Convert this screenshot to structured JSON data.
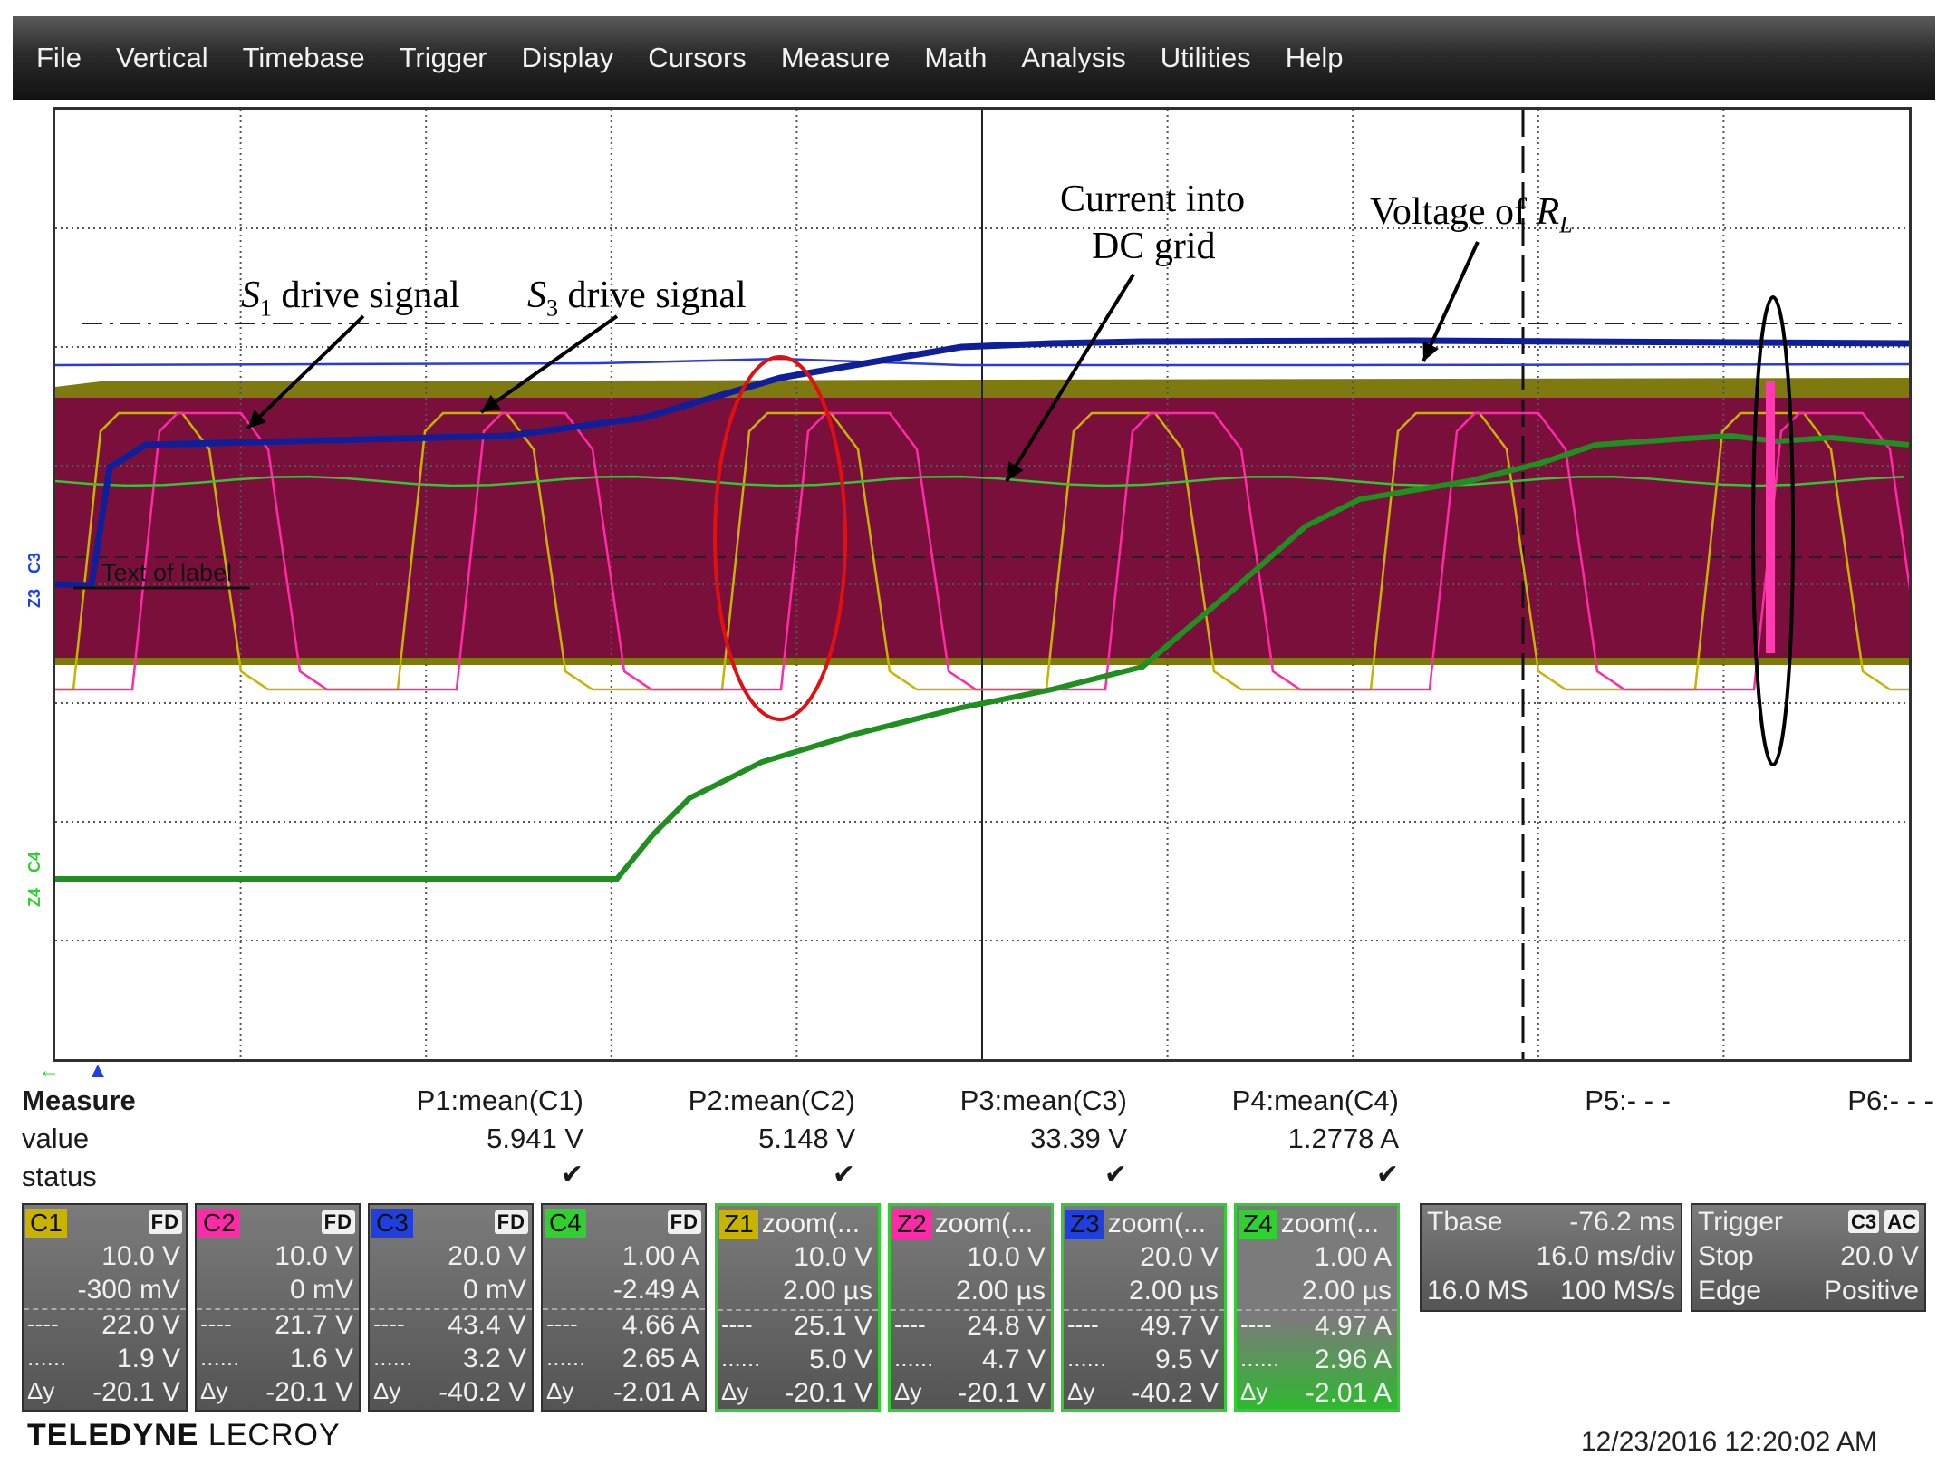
{
  "menu": [
    "File",
    "Vertical",
    "Timebase",
    "Trigger",
    "Display",
    "Cursors",
    "Measure",
    "Math",
    "Analysis",
    "Utilities",
    "Help"
  ],
  "annotations": {
    "s1": "drive signal",
    "s1_sym": "S",
    "s1_sub": "1",
    "s3": "drive signal",
    "s3_sym": "S",
    "s3_sub": "3",
    "current_line1": "Current into",
    "current_line2": "DC grid",
    "voltage": "Voltage of ",
    "voltage_sym": "R",
    "voltage_sub": "L"
  },
  "label_text": "Text of label",
  "channel_markers": {
    "c3": "C3",
    "z3": "Z3",
    "c4": "C4",
    "z4": "Z4"
  },
  "measure": {
    "title": "Measure",
    "row_value": "value",
    "row_status": "status",
    "params": [
      {
        "name": "P1:mean(C1)",
        "value": "5.941 V",
        "status": "✔"
      },
      {
        "name": "P2:mean(C2)",
        "value": "5.148 V",
        "status": "✔"
      },
      {
        "name": "P3:mean(C3)",
        "value": "33.39 V",
        "status": "✔"
      },
      {
        "name": "P4:mean(C4)",
        "value": "1.2778 A",
        "status": "✔"
      },
      {
        "name": "P5:- - -",
        "value": "",
        "status": ""
      },
      {
        "name": "P6:- - -",
        "value": "",
        "status": ""
      }
    ]
  },
  "channels": [
    {
      "tag": "C1",
      "title": "",
      "tagcolor": "#c8b400",
      "fd": "FD",
      "r1": "10.0 V",
      "r2": "-300 mV",
      "r3l": "----",
      "r3": "22.0 V",
      "r4l": "......",
      "r4": "1.9 V",
      "r5l": "Δy",
      "r5": "-20.1 V"
    },
    {
      "tag": "C2",
      "title": "",
      "tagcolor": "#ff2aa8",
      "fd": "FD",
      "r1": "10.0 V",
      "r2": "0 mV",
      "r3l": "----",
      "r3": "21.7 V",
      "r4l": "......",
      "r4": "1.6 V",
      "r5l": "Δy",
      "r5": "-20.1 V"
    },
    {
      "tag": "C3",
      "title": "",
      "tagcolor": "#1f3fe0",
      "fd": "FD",
      "r1": "20.0 V",
      "r2": "0 mV",
      "r3l": "----",
      "r3": "43.4 V",
      "r4l": "......",
      "r4": "3.2 V",
      "r5l": "Δy",
      "r5": "-40.2 V"
    },
    {
      "tag": "C4",
      "title": "",
      "tagcolor": "#2fd02f",
      "fd": "FD",
      "r1": "1.00 A",
      "r2": "-2.49 A",
      "r3l": "----",
      "r3": "4.66 A",
      "r4l": "......",
      "r4": "2.65 A",
      "r5l": "Δy",
      "r5": "-2.01 A"
    },
    {
      "tag": "Z1",
      "title": "zoom(...",
      "tagcolor": "#c8b400",
      "fd": "",
      "r1": "10.0 V",
      "r2": "2.00 µs",
      "r3l": "----",
      "r3": "25.1 V",
      "r4l": "......",
      "r4": "5.0 V",
      "r5l": "Δy",
      "r5": "-20.1 V"
    },
    {
      "tag": "Z2",
      "title": "zoom(...",
      "tagcolor": "#ff2aa8",
      "fd": "",
      "r1": "10.0 V",
      "r2": "2.00 µs",
      "r3l": "----",
      "r3": "24.8 V",
      "r4l": "......",
      "r4": "4.7 V",
      "r5l": "Δy",
      "r5": "-20.1 V"
    },
    {
      "tag": "Z3",
      "title": "zoom(...",
      "tagcolor": "#1f3fe0",
      "fd": "",
      "r1": "20.0 V",
      "r2": "2.00 µs",
      "r3l": "----",
      "r3": "49.7 V",
      "r4l": "......",
      "r4": "9.5 V",
      "r5l": "Δy",
      "r5": "-40.2 V"
    },
    {
      "tag": "Z4",
      "title": "zoom(...",
      "tagcolor": "#2fd02f",
      "fd": "",
      "r1": "1.00 A",
      "r2": "2.00 µs",
      "r3l": "----",
      "r3": "4.97 A",
      "r4l": "......",
      "r4": "2.96 A",
      "r5l": "Δy",
      "r5": "-2.01 A"
    }
  ],
  "tbase": {
    "label": "Tbase",
    "offset": "-76.2 ms",
    "div": "16.0 ms/div",
    "samples": "16.0 MS",
    "rate": "100 MS/s"
  },
  "trigger": {
    "label": "Trigger",
    "src": "C3",
    "coupling": "AC",
    "mode": "Stop",
    "level": "20.0 V",
    "type": "Edge",
    "slope": "Positive"
  },
  "brand": {
    "a": "TELEDYNE",
    "b": "LECROY"
  },
  "timestamp": "12/23/2016 12:20:02 AM",
  "colors": {
    "ch1": "#c8b400",
    "ch2": "#ff2aa8",
    "ch3": "#1f3fe0",
    "ch4": "#1f9a1f",
    "fill": "#7a0f3c",
    "olive": "#7f7a10"
  }
}
